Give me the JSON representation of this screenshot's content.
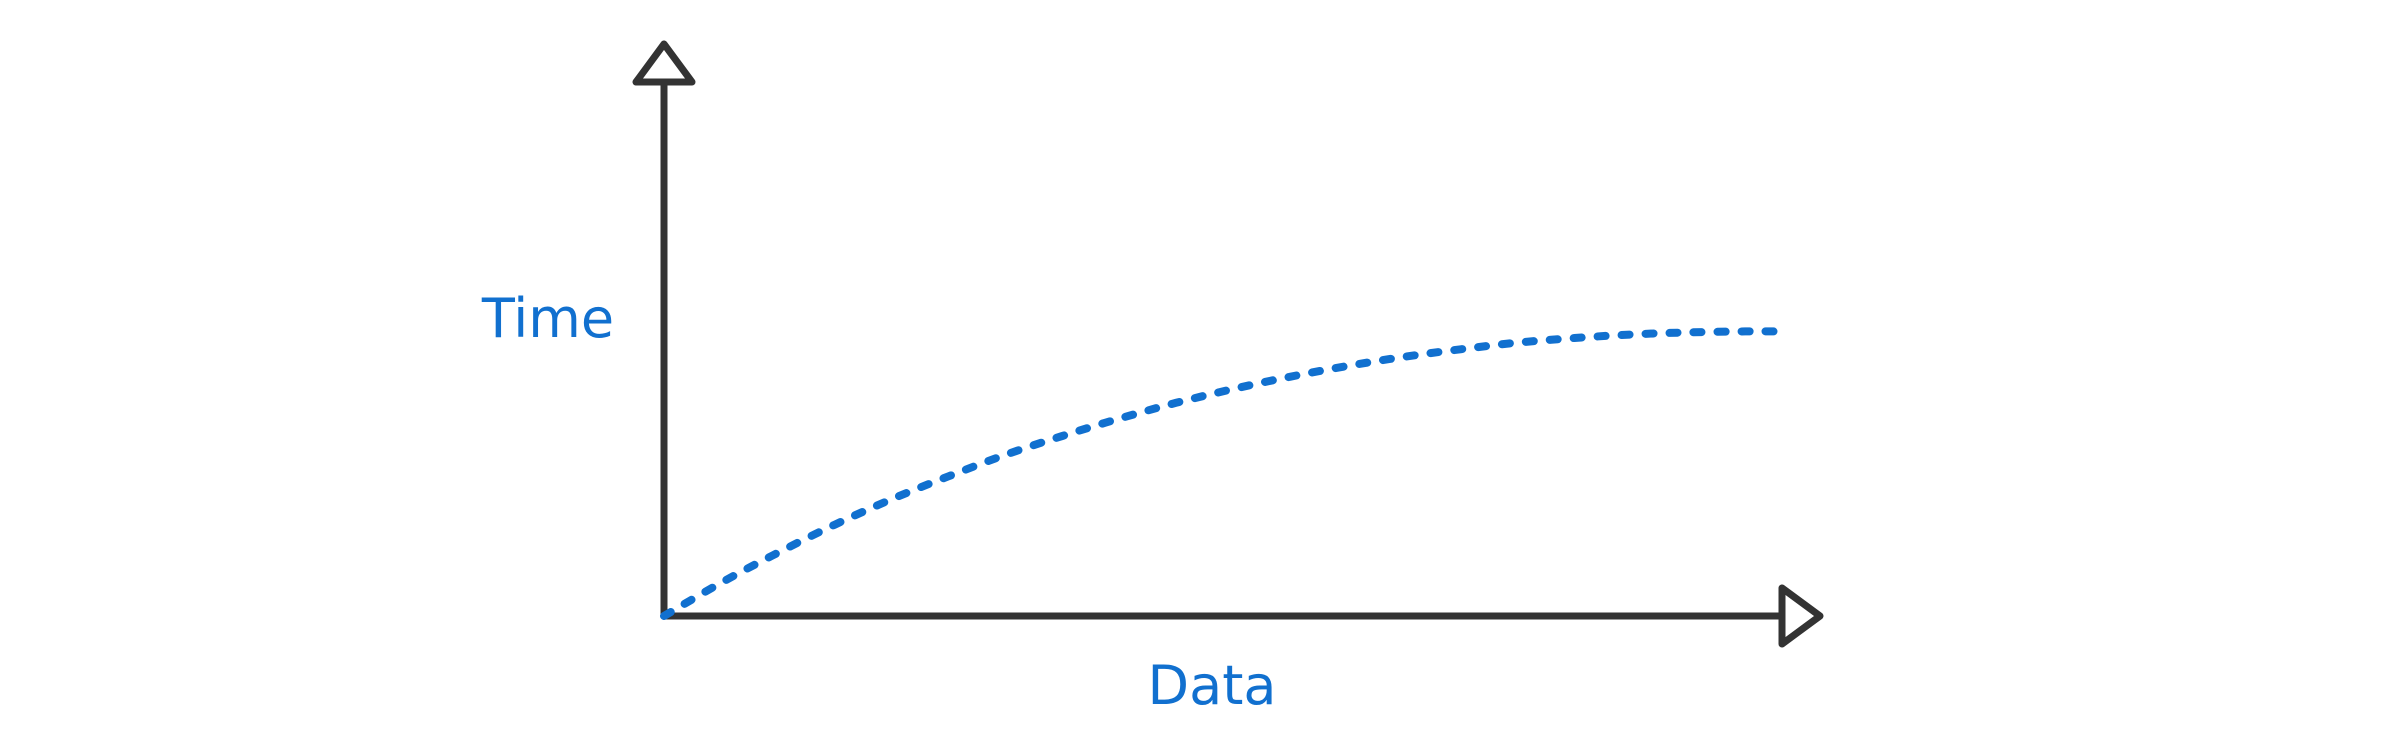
{
  "colors": {
    "axis": "#333333",
    "accent": "#1170cf"
  },
  "chart_data": {
    "type": "line",
    "title": "",
    "xlabel": "Data",
    "ylabel": "Time",
    "xlim": [
      0,
      100
    ],
    "ylim": [
      0,
      100
    ],
    "grid": false,
    "series": [
      {
        "style": "dotted",
        "x": [
          0,
          5,
          10,
          15,
          20,
          25,
          30,
          35,
          40,
          45,
          50,
          55,
          60,
          65,
          70,
          75,
          80,
          85,
          90,
          95,
          98
        ],
        "y": [
          0,
          6.5,
          12.4,
          17.9,
          22.9,
          27.4,
          31.6,
          35.3,
          38.7,
          41.8,
          44.5,
          46.9,
          49,
          50.8,
          52.3,
          53.6,
          54.5,
          55.2,
          55.6,
          55.8,
          55.8
        ]
      }
    ]
  }
}
